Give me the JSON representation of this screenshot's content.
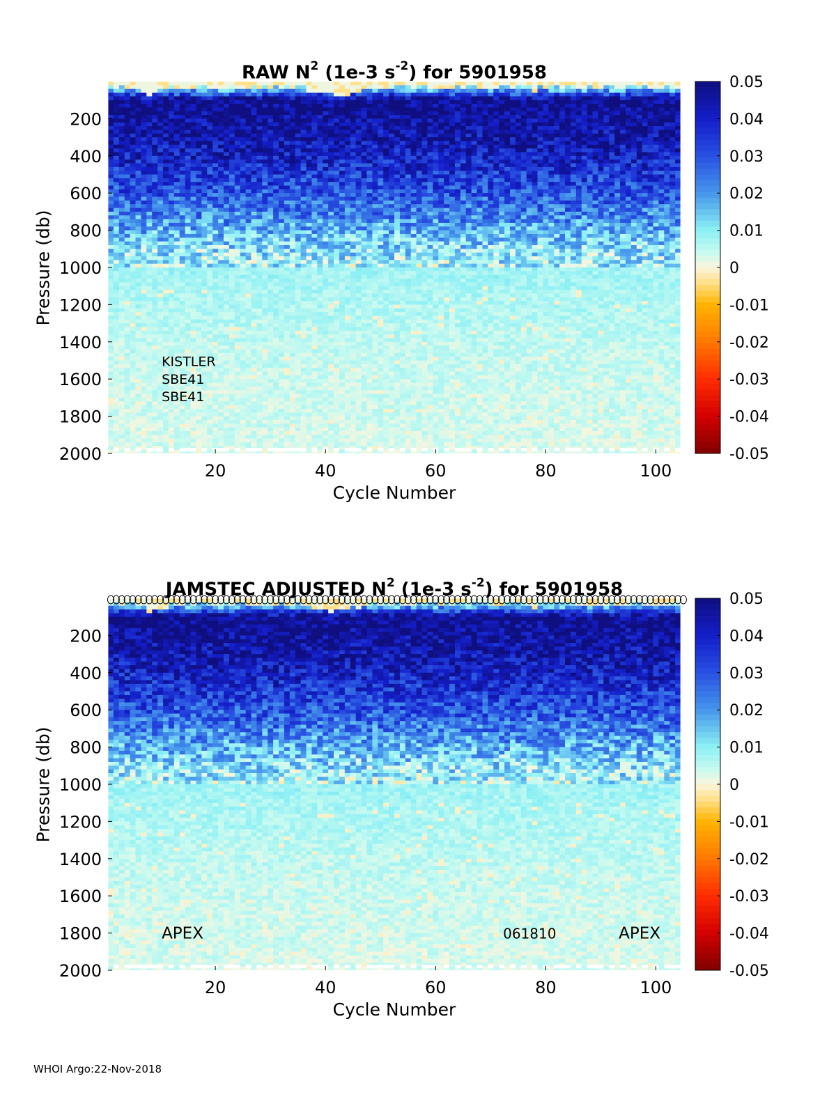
{
  "footer": "WHOI Argo:22-Nov-2018",
  "chart_data": [
    {
      "type": "heatmap",
      "title_main": "RAW N",
      "title_sup1": "2",
      "title_mid": " (1e-3 s",
      "title_sup2": "-2",
      "title_end": ") for 5901958",
      "xlabel": "Cycle Number",
      "ylabel": "Pressure (db)",
      "xlim": [
        1,
        104
      ],
      "ylim": [
        2000,
        0
      ],
      "xticks": [
        20,
        40,
        60,
        80,
        100
      ],
      "yticks": [
        200,
        400,
        600,
        800,
        1000,
        1200,
        1400,
        1600,
        1800,
        2000
      ],
      "colorbar": {
        "range": [
          -0.05,
          0.05
        ],
        "ticks": [
          "0.05",
          "0.04",
          "0.03",
          "0.02",
          "0.01",
          "0",
          "-0.01",
          "-0.02",
          "-0.03",
          "-0.04",
          "-0.05"
        ]
      },
      "value_profile": {
        "pressure": [
          20,
          100,
          200,
          300,
          400,
          500,
          600,
          700,
          800,
          900,
          1000,
          1200,
          1400,
          1600,
          1800,
          2000
        ],
        "n2": [
          0.002,
          0.05,
          0.047,
          0.044,
          0.04,
          0.035,
          0.03,
          0.024,
          0.017,
          0.011,
          0.008,
          0.0065,
          0.005,
          0.004,
          0.0035,
          0.003
        ]
      },
      "annotations": [
        {
          "text": "KISTLER",
          "x": 10,
          "y": 1500
        },
        {
          "text": "SBE41",
          "x": 10,
          "y": 1595
        },
        {
          "text": "SBE41",
          "x": 10,
          "y": 1690
        }
      ],
      "top_markers": false
    },
    {
      "type": "heatmap",
      "title_main": "JAMSTEC  ADJUSTED N",
      "title_sup1": "2",
      "title_mid": " (1e-3 s",
      "title_sup2": "-2",
      "title_end": ") for 5901958",
      "xlabel": "Cycle Number",
      "ylabel": "Pressure (db)",
      "xlim": [
        1,
        104
      ],
      "ylim": [
        2000,
        0
      ],
      "xticks": [
        20,
        40,
        60,
        80,
        100
      ],
      "yticks": [
        200,
        400,
        600,
        800,
        1000,
        1200,
        1400,
        1600,
        1800,
        2000
      ],
      "colorbar": {
        "range": [
          -0.05,
          0.05
        ],
        "ticks": [
          "0.05",
          "0.04",
          "0.03",
          "0.02",
          "0.01",
          "0",
          "-0.01",
          "-0.02",
          "-0.03",
          "-0.04",
          "-0.05"
        ]
      },
      "value_profile": {
        "pressure": [
          20,
          100,
          200,
          300,
          400,
          500,
          600,
          700,
          800,
          900,
          1000,
          1200,
          1400,
          1600,
          1800,
          2000
        ],
        "n2": [
          0.002,
          0.05,
          0.047,
          0.044,
          0.04,
          0.035,
          0.03,
          0.024,
          0.017,
          0.011,
          0.008,
          0.0065,
          0.005,
          0.004,
          0.0035,
          0.003
        ]
      },
      "annotations": [
        {
          "text": "APEX",
          "x": 10,
          "y": 1800
        },
        {
          "text": "061810",
          "x": 72,
          "y": 1800
        },
        {
          "text": "APEX",
          "x": 93,
          "y": 1800
        }
      ],
      "top_markers": true
    }
  ]
}
